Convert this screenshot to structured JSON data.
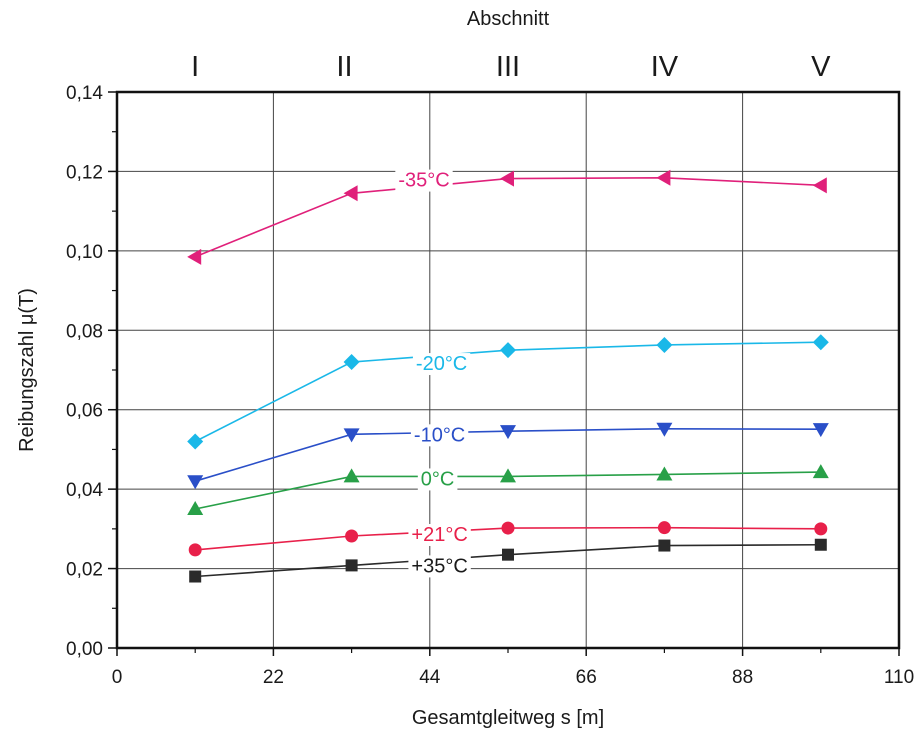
{
  "chart_data": {
    "type": "line",
    "xlabel": "Gesamtgleitweg s [m]",
    "ylabel": "Reibungszahl μ(T)",
    "top_axis_label": "Abschnitt",
    "xlim": [
      0,
      110
    ],
    "ylim": [
      0,
      0.14
    ],
    "x_ticks": [
      0,
      22,
      44,
      66,
      88,
      110
    ],
    "x_tick_labels": [
      "0",
      "22",
      "44",
      "66",
      "88",
      "110"
    ],
    "y_ticks": [
      0,
      0.02,
      0.04,
      0.06,
      0.08,
      0.1,
      0.12,
      0.14
    ],
    "y_tick_labels": [
      "0,00",
      "0,02",
      "0,04",
      "0,06",
      "0,08",
      "0,10",
      "0,12",
      "0,14"
    ],
    "sections": [
      {
        "label": "I",
        "x": 11
      },
      {
        "label": "II",
        "x": 32
      },
      {
        "label": "III",
        "x": 55
      },
      {
        "label": "IV",
        "x": 77
      },
      {
        "label": "V",
        "x": 99
      }
    ],
    "grid": true,
    "x": [
      11,
      33,
      55,
      77,
      99
    ],
    "series": [
      {
        "name": "-35°C",
        "color": "#e0207a",
        "marker": "triangle-left",
        "values": [
          0.0985,
          0.1145,
          0.1182,
          0.1184,
          0.1165
        ]
      },
      {
        "name": "-20°C",
        "color": "#1ab8e8",
        "marker": "diamond",
        "values": [
          0.052,
          0.072,
          0.075,
          0.0763,
          0.077
        ]
      },
      {
        "name": "-10°C",
        "color": "#2a4fc8",
        "marker": "triangle-down",
        "values": [
          0.042,
          0.0538,
          0.0546,
          0.0552,
          0.0551
        ]
      },
      {
        "name": "0°C",
        "color": "#28a048",
        "marker": "triangle-up",
        "values": [
          0.035,
          0.0432,
          0.0432,
          0.0437,
          0.0443
        ]
      },
      {
        "name": "+21°C",
        "color": "#e8204a",
        "marker": "circle",
        "values": [
          0.0247,
          0.0282,
          0.0302,
          0.0303,
          0.03
        ]
      },
      {
        "name": "+35°C",
        "color": "#2a2a2a",
        "marker": "square",
        "values": [
          0.018,
          0.0208,
          0.0235,
          0.0258,
          0.026
        ]
      }
    ]
  }
}
